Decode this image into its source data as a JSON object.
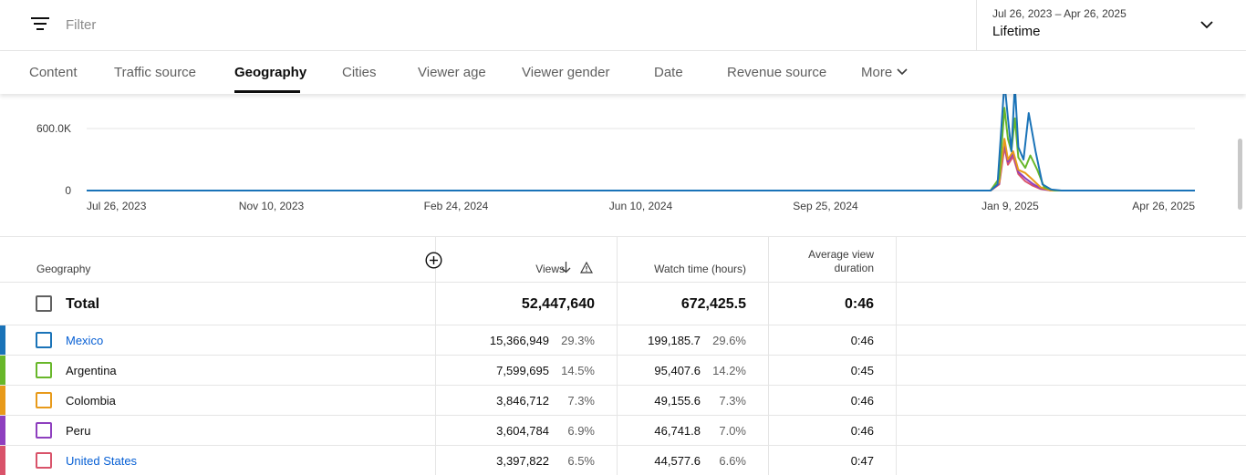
{
  "filter": {
    "placeholder": "Filter"
  },
  "date_picker": {
    "range": "Jul 26, 2023 – Apr 26, 2025",
    "label": "Lifetime"
  },
  "tabs": [
    {
      "label": "Content"
    },
    {
      "label": "Traffic source"
    },
    {
      "label": "Geography",
      "active": true
    },
    {
      "label": "Cities"
    },
    {
      "label": "Viewer age"
    },
    {
      "label": "Viewer gender"
    },
    {
      "label": "Date"
    },
    {
      "label": "Revenue source"
    },
    {
      "label": "More"
    }
  ],
  "chart_data": {
    "type": "line",
    "y_ticks": [
      "600.0K",
      "0"
    ],
    "x_ticks": [
      "Jul 26, 2023",
      "Nov 10, 2023",
      "Feb 24, 2024",
      "Jun 10, 2024",
      "Sep 25, 2024",
      "Jan 9, 2025",
      "Apr 26, 2025"
    ],
    "x_range": [
      "2023-07-26",
      "2025-04-26"
    ],
    "y_range": [
      0,
      600000
    ],
    "grid": true,
    "series": [
      {
        "name": "Mexico",
        "color": "#1a73b8",
        "points": [
          [
            "2023-07-26",
            0
          ],
          [
            "2024-12-29",
            0
          ],
          [
            "2025-01-02",
            60000
          ],
          [
            "2025-01-06",
            1050000
          ],
          [
            "2025-01-08",
            700000
          ],
          [
            "2025-01-10",
            380000
          ],
          [
            "2025-01-12",
            1020000
          ],
          [
            "2025-01-14",
            420000
          ],
          [
            "2025-01-17",
            300000
          ],
          [
            "2025-01-20",
            750000
          ],
          [
            "2025-01-24",
            380000
          ],
          [
            "2025-01-28",
            60000
          ],
          [
            "2025-02-02",
            10000
          ],
          [
            "2025-02-08",
            0
          ],
          [
            "2025-04-26",
            0
          ]
        ]
      },
      {
        "name": "Argentina",
        "color": "#68b72a",
        "points": [
          [
            "2023-07-26",
            0
          ],
          [
            "2024-12-29",
            0
          ],
          [
            "2025-01-03",
            120000
          ],
          [
            "2025-01-06",
            800000
          ],
          [
            "2025-01-08",
            500000
          ],
          [
            "2025-01-10",
            380000
          ],
          [
            "2025-01-12",
            700000
          ],
          [
            "2025-01-14",
            320000
          ],
          [
            "2025-01-18",
            220000
          ],
          [
            "2025-01-21",
            340000
          ],
          [
            "2025-01-25",
            200000
          ],
          [
            "2025-01-29",
            30000
          ],
          [
            "2025-02-04",
            0
          ],
          [
            "2025-04-26",
            0
          ]
        ]
      },
      {
        "name": "Colombia",
        "color": "#e89a1a",
        "points": [
          [
            "2023-07-26",
            0
          ],
          [
            "2024-12-29",
            0
          ],
          [
            "2025-01-03",
            80000
          ],
          [
            "2025-01-06",
            500000
          ],
          [
            "2025-01-08",
            300000
          ],
          [
            "2025-01-11",
            380000
          ],
          [
            "2025-01-14",
            200000
          ],
          [
            "2025-01-18",
            170000
          ],
          [
            "2025-01-22",
            110000
          ],
          [
            "2025-01-27",
            30000
          ],
          [
            "2025-02-02",
            0
          ],
          [
            "2025-04-26",
            0
          ]
        ]
      },
      {
        "name": "Peru",
        "color": "#8e3fbf",
        "points": [
          [
            "2023-07-26",
            0
          ],
          [
            "2024-12-29",
            0
          ],
          [
            "2025-01-03",
            70000
          ],
          [
            "2025-01-06",
            460000
          ],
          [
            "2025-01-08",
            280000
          ],
          [
            "2025-01-11",
            360000
          ],
          [
            "2025-01-14",
            180000
          ],
          [
            "2025-01-18",
            120000
          ],
          [
            "2025-01-22",
            70000
          ],
          [
            "2025-01-27",
            20000
          ],
          [
            "2025-02-02",
            0
          ],
          [
            "2025-04-26",
            0
          ]
        ]
      },
      {
        "name": "United States",
        "color": "#d9536a",
        "points": [
          [
            "2023-07-26",
            0
          ],
          [
            "2024-12-29",
            0
          ],
          [
            "2025-01-03",
            60000
          ],
          [
            "2025-01-06",
            420000
          ],
          [
            "2025-01-08",
            250000
          ],
          [
            "2025-01-11",
            330000
          ],
          [
            "2025-01-14",
            160000
          ],
          [
            "2025-01-18",
            90000
          ],
          [
            "2025-01-22",
            50000
          ],
          [
            "2025-01-27",
            15000
          ],
          [
            "2025-02-02",
            0
          ],
          [
            "2025-04-26",
            0
          ]
        ]
      }
    ]
  },
  "table": {
    "headers": {
      "geography": "Geography",
      "views": "Views",
      "watch_time": "Watch time (hours)",
      "avg_duration": "Average view duration"
    },
    "total": {
      "label": "Total",
      "views": "52,447,640",
      "watch_time": "672,425.5",
      "avg_duration": "0:46"
    },
    "rows": [
      {
        "name": "Mexico",
        "link": true,
        "color": "#1a73b8",
        "views": "15,366,949",
        "views_pct": "29.3%",
        "watch_time": "199,185.7",
        "watch_pct": "29.6%",
        "avg_duration": "0:46"
      },
      {
        "name": "Argentina",
        "link": false,
        "color": "#68b72a",
        "views": "7,599,695",
        "views_pct": "14.5%",
        "watch_time": "95,407.6",
        "watch_pct": "14.2%",
        "avg_duration": "0:45"
      },
      {
        "name": "Colombia",
        "link": false,
        "color": "#e89a1a",
        "views": "3,846,712",
        "views_pct": "7.3%",
        "watch_time": "49,155.6",
        "watch_pct": "7.3%",
        "avg_duration": "0:46"
      },
      {
        "name": "Peru",
        "link": false,
        "color": "#8e3fbf",
        "views": "3,604,784",
        "views_pct": "6.9%",
        "watch_time": "46,741.8",
        "watch_pct": "7.0%",
        "avg_duration": "0:46"
      },
      {
        "name": "United States",
        "link": true,
        "color": "#d9536a",
        "views": "3,397,822",
        "views_pct": "6.5%",
        "watch_time": "44,577.6",
        "watch_pct": "6.6%",
        "avg_duration": "0:47"
      }
    ]
  },
  "icons": [
    "filter-icon",
    "chevron-down-icon",
    "add-column-icon",
    "sort-descending-icon",
    "warning-icon"
  ]
}
